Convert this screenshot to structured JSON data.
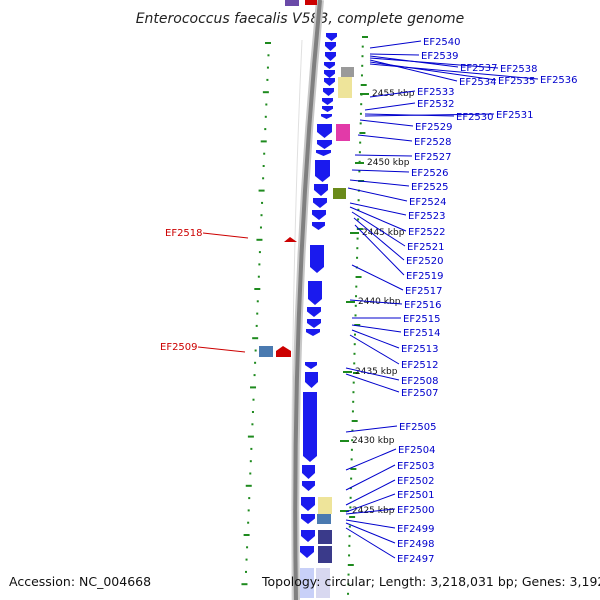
{
  "title": "Enterococcus faecalis V583, complete genome",
  "accession": "Accession: NC_004668",
  "topology": "Topology: circular; Length: 3,218,031 bp; Genes: 3,192",
  "colors": {
    "gene_forward": "#1a1aee",
    "highlight": "#cc0000",
    "label_blue": "#0000cc",
    "tick": "#1e8a1e",
    "backbone": "#808080"
  },
  "kbp_ticks": [
    "2455 kbp",
    "2450 kbp",
    "2445 kbp",
    "2440 kbp",
    "2435 kbp",
    "2430 kbp",
    "2425 kbp"
  ],
  "right_labels": [
    "EF2540",
    "EF2539",
    "EF2537",
    "EF2538",
    "EF2534",
    "EF2535",
    "EF2536",
    "EF2533",
    "EF2532",
    "EF2530",
    "EF2531",
    "EF2529",
    "EF2528",
    "EF2527",
    "EF2526",
    "EF2525",
    "EF2524",
    "EF2523",
    "EF2522",
    "EF2521",
    "EF2520",
    "EF2519",
    "EF2517",
    "EF2516",
    "EF2515",
    "EF2514",
    "EF2513",
    "EF2512",
    "EF2508",
    "EF2507",
    "EF2505",
    "EF2504",
    "EF2503",
    "EF2502",
    "EF2501",
    "EF2500",
    "EF2499",
    "EF2498",
    "EF2497"
  ],
  "left_labels": [
    "EF2518",
    "EF2509"
  ]
}
